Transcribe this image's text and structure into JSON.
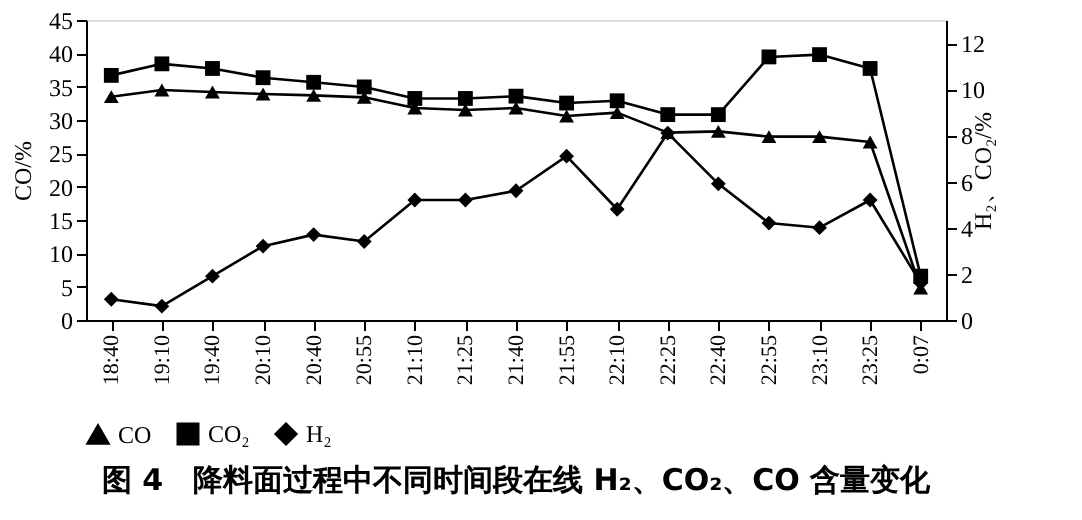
{
  "chart_data": {
    "type": "line",
    "title": "图 4　降料面过程中不同时间段在线 H₂、CO₂、CO 含量变化",
    "ylabel": "CO/%",
    "y2label": "H₂、CO₂/%",
    "categories": [
      "18:40",
      "19:10",
      "19:40",
      "20:10",
      "20:40",
      "20:55",
      "21:10",
      "21:25",
      "21:40",
      "21:55",
      "22:10",
      "22:25",
      "22:40",
      "22:55",
      "23:10",
      "23:25",
      "0:07"
    ],
    "series": [
      {
        "name": "CO",
        "color": "#000000",
        "marker": "triangle",
        "values": [
          33.5,
          34.5,
          34.2,
          33.9,
          33.7,
          33.4,
          31.8,
          31.5,
          31.8,
          30.6,
          31.1,
          28.1,
          28.3,
          27.5,
          27.5,
          26.7,
          4.8
        ]
      },
      {
        "name": "CO₂",
        "color": "#000000",
        "marker": "square",
        "axis": "y2",
        "values": [
          10.6,
          11.1,
          10.9,
          10.5,
          10.3,
          10.1,
          9.6,
          9.6,
          9.7,
          9.4,
          9.5,
          8.9,
          8.9,
          11.4,
          11.5,
          10.9,
          1.9
        ]
      },
      {
        "name": "H₂",
        "color": "#000000",
        "marker": "diamond",
        "axis": "y2",
        "values": [
          0.9,
          0.6,
          1.9,
          3.2,
          3.7,
          3.4,
          5.2,
          5.2,
          5.6,
          7.1,
          4.8,
          8.1,
          5.9,
          4.2,
          4.0,
          5.2,
          1.6
        ]
      }
    ],
    "ylim": [
      0,
      45
    ],
    "yticks": [
      0,
      5,
      10,
      15,
      20,
      25,
      30,
      35,
      40,
      45
    ],
    "y2lim": [
      0,
      13
    ],
    "y2ticks": [
      0,
      2,
      4,
      6,
      8,
      10,
      12
    ],
    "legend": "bottom",
    "grid": false,
    "line_style": "solid"
  }
}
